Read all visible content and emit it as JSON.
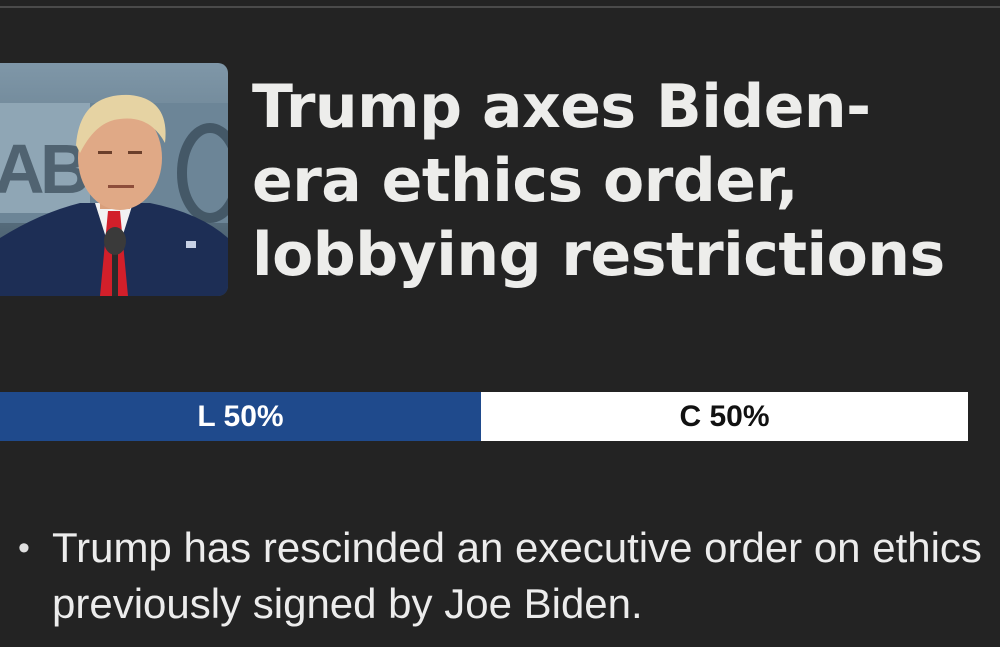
{
  "article": {
    "thumbnail_icon": "photo-icon",
    "headline": "Trump axes Biden-era ethics order, lobbying restrictions",
    "thumbnail_text": "AB"
  },
  "bias": {
    "left_label": "L 50%",
    "right_label": "C 50%",
    "left_percent": 50,
    "right_percent": 50,
    "left_color": "#1f4a8c",
    "right_color": "#ffffff"
  },
  "summary": {
    "bullet": "•",
    "items": [
      "Trump has rescinded an executive order on ethics previously signed by Joe Biden."
    ]
  }
}
